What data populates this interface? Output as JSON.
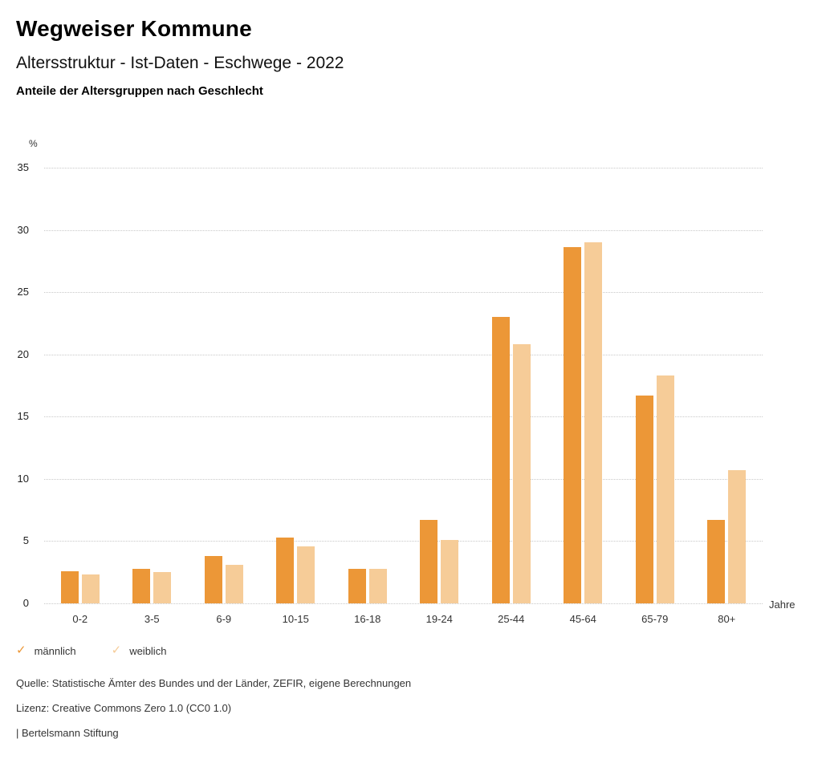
{
  "header": {
    "title": "Wegweiser Kommune",
    "subtitle": "Altersstruktur - Ist-Daten - Eschwege - 2022",
    "chart_heading": "Anteile der Altersgruppen nach Geschlecht"
  },
  "chart_data": {
    "type": "bar",
    "title": "Anteile der Altersgruppen nach Geschlecht",
    "categories": [
      "0-2",
      "3-5",
      "6-9",
      "10-15",
      "16-18",
      "19-24",
      "25-44",
      "45-64",
      "65-79",
      "80+"
    ],
    "series": [
      {
        "name": "männlich",
        "color": "#EC9737",
        "values": [
          2.6,
          2.8,
          3.8,
          5.3,
          2.8,
          6.7,
          23.0,
          28.6,
          16.7,
          6.7
        ]
      },
      {
        "name": "weiblich",
        "color": "#F6CC98",
        "values": [
          2.3,
          2.5,
          3.1,
          4.6,
          2.8,
          5.1,
          20.8,
          29.0,
          18.3,
          10.7
        ]
      }
    ],
    "xlabel": "Jahre",
    "ylabel": "%",
    "ylim": [
      0,
      35
    ],
    "ytick_step": 5,
    "y_ticks": [
      35,
      30,
      25,
      20,
      15,
      10,
      5,
      0
    ],
    "grid": "horizontal-dotted",
    "gridline_color": "#c8c8c8",
    "legend_position": "bottom-left",
    "legend_check_icon": "✓"
  },
  "footer": {
    "source": "Quelle: Statistische Ämter des Bundes und der Länder, ZEFIR, eigene Berechnungen",
    "license": "Lizenz: Creative Commons Zero 1.0 (CC0 1.0)",
    "attribution": "| Bertelsmann Stiftung"
  }
}
